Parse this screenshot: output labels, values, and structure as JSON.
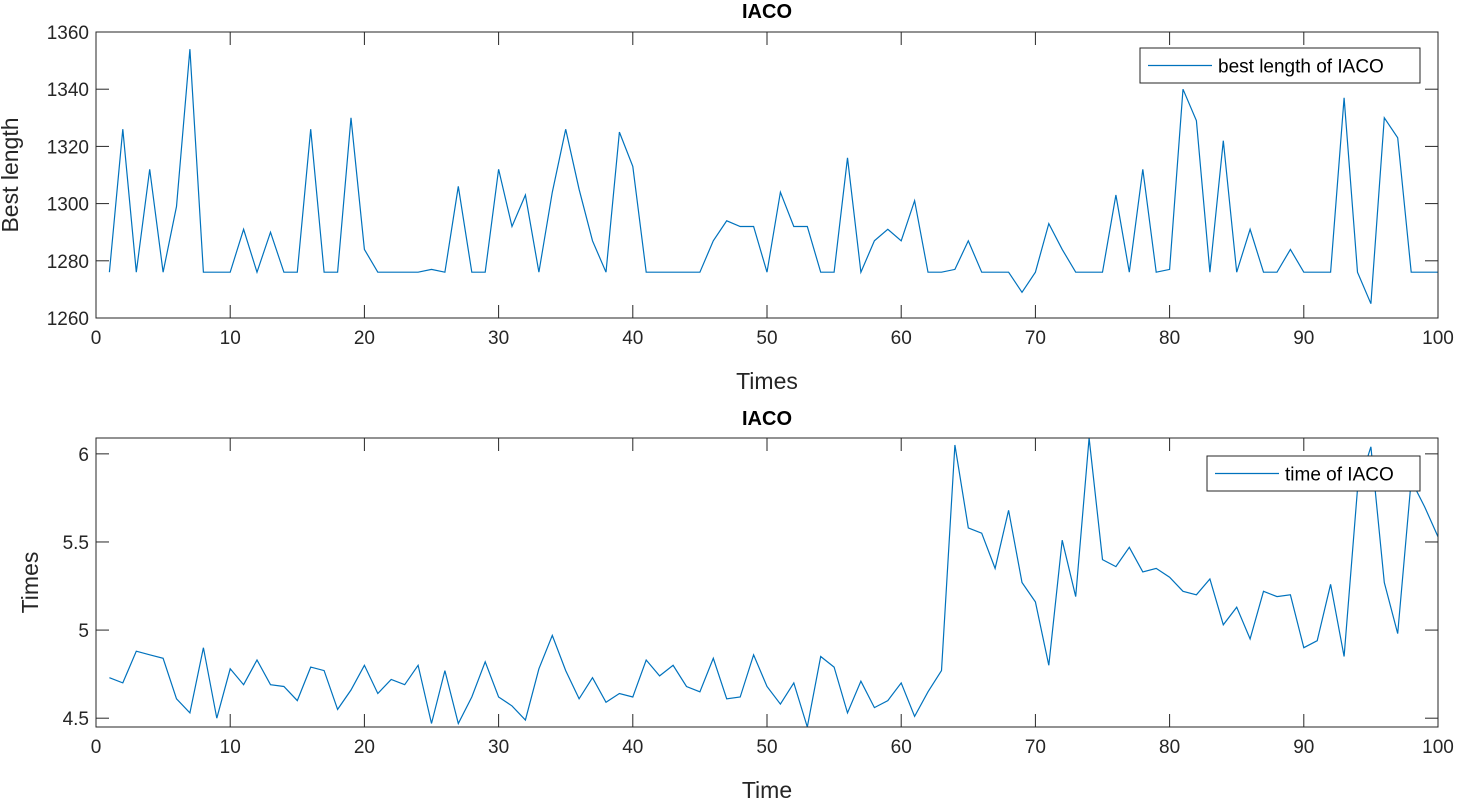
{
  "chart_data": [
    {
      "type": "line",
      "title": "IACO",
      "xlabel": "Times",
      "ylabel": "Best length",
      "xlim": [
        0,
        100
      ],
      "ylim": [
        1260,
        1360
      ],
      "xticks": [
        "0",
        "10",
        "20",
        "30",
        "40",
        "50",
        "60",
        "70",
        "80",
        "90",
        "100"
      ],
      "yticks": [
        "1260",
        "1280",
        "1300",
        "1320",
        "1340",
        "1360"
      ],
      "legend_position": "top-right",
      "grid": false,
      "series": [
        {
          "name": "best length of IACO",
          "color": "#0072BD",
          "x_start": 1,
          "values": [
            1276,
            1326,
            1276,
            1312,
            1276,
            1299,
            1354,
            1276,
            1276,
            1276,
            1291,
            1276,
            1290,
            1276,
            1276,
            1326,
            1276,
            1276,
            1330,
            1284,
            1276,
            1276,
            1276,
            1276,
            1277,
            1276,
            1306,
            1276,
            1276,
            1312,
            1292,
            1303,
            1276,
            1304,
            1326,
            1305,
            1287,
            1276,
            1325,
            1313,
            1276,
            1276,
            1276,
            1276,
            1276,
            1287,
            1294,
            1292,
            1292,
            1276,
            1304,
            1292,
            1292,
            1276,
            1276,
            1316,
            1276,
            1287,
            1291,
            1287,
            1301,
            1276,
            1276,
            1277,
            1287,
            1276,
            1276,
            1276,
            1269,
            1276,
            1293,
            1284,
            1276,
            1276,
            1276,
            1303,
            1276,
            1312,
            1276,
            1277,
            1340,
            1329,
            1276,
            1322,
            1276,
            1291,
            1276,
            1276,
            1284,
            1276,
            1276,
            1276,
            1337,
            1276,
            1265,
            1330,
            1323,
            1276,
            1276,
            1276
          ]
        }
      ]
    },
    {
      "type": "line",
      "title": "IACO",
      "xlabel": "Time",
      "ylabel": "Times",
      "xlim": [
        0,
        100
      ],
      "ylim": [
        4.45,
        6.09
      ],
      "xticks": [
        "0",
        "10",
        "20",
        "30",
        "40",
        "50",
        "60",
        "70",
        "80",
        "90",
        "100"
      ],
      "yticks": [
        "4.5",
        "5",
        "5.5",
        "6"
      ],
      "legend_position": "top-right",
      "grid": false,
      "series": [
        {
          "name": "time of IACO",
          "color": "#0072BD",
          "x_start": 1,
          "values": [
            4.73,
            4.7,
            4.88,
            4.86,
            4.84,
            4.61,
            4.53,
            4.9,
            4.5,
            4.78,
            4.69,
            4.83,
            4.69,
            4.68,
            4.6,
            4.79,
            4.77,
            4.55,
            4.66,
            4.8,
            4.64,
            4.72,
            4.69,
            4.8,
            4.47,
            4.77,
            4.47,
            4.62,
            4.82,
            4.62,
            4.57,
            4.49,
            4.78,
            4.97,
            4.77,
            4.61,
            4.73,
            4.59,
            4.64,
            4.62,
            4.83,
            4.74,
            4.8,
            4.68,
            4.65,
            4.84,
            4.61,
            4.62,
            4.86,
            4.68,
            4.58,
            4.7,
            4.45,
            4.85,
            4.79,
            4.53,
            4.71,
            4.56,
            4.6,
            4.7,
            4.51,
            4.65,
            4.77,
            6.05,
            5.58,
            5.55,
            5.35,
            5.68,
            5.27,
            5.16,
            4.8,
            5.51,
            5.19,
            6.09,
            5.4,
            5.36,
            5.47,
            5.33,
            5.35,
            5.3,
            5.22,
            5.2,
            5.29,
            5.03,
            5.13,
            4.95,
            5.22,
            5.19,
            5.2,
            4.9,
            4.94,
            5.26,
            4.85,
            5.8,
            6.04,
            5.27,
            4.98,
            5.85,
            5.7,
            5.53
          ]
        }
      ]
    }
  ]
}
